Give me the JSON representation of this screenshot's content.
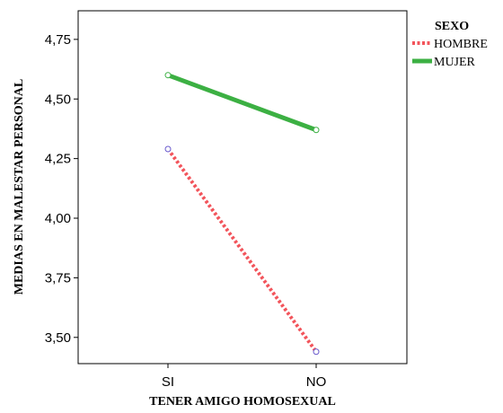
{
  "chart_data": {
    "type": "line",
    "title": "",
    "xlabel": "TENER AMIGO HOMOSEXUAL",
    "ylabel": "MEDIAS EN MALESTAR PERSONAL",
    "categories": [
      "SI",
      "NO"
    ],
    "ylim": [
      3.39,
      4.87
    ],
    "yticks": [
      3.5,
      3.75,
      4.0,
      4.25,
      4.5,
      4.75
    ],
    "ytick_labels": [
      "3,50",
      "3,75",
      "4,00",
      "4,25",
      "4,50",
      "4,75"
    ],
    "grid": false,
    "legend": {
      "title": "SEXO",
      "position": "right"
    },
    "series": [
      {
        "name": "HOMBRE",
        "values": [
          4.29,
          3.44
        ],
        "color": "#f2545b",
        "marker_color": "#6a5acd",
        "line_style": "dotted"
      },
      {
        "name": "MUJER",
        "values": [
          4.6,
          4.37
        ],
        "color": "#3cb043",
        "marker_color": "#3cb043",
        "line_style": "solid"
      }
    ]
  }
}
